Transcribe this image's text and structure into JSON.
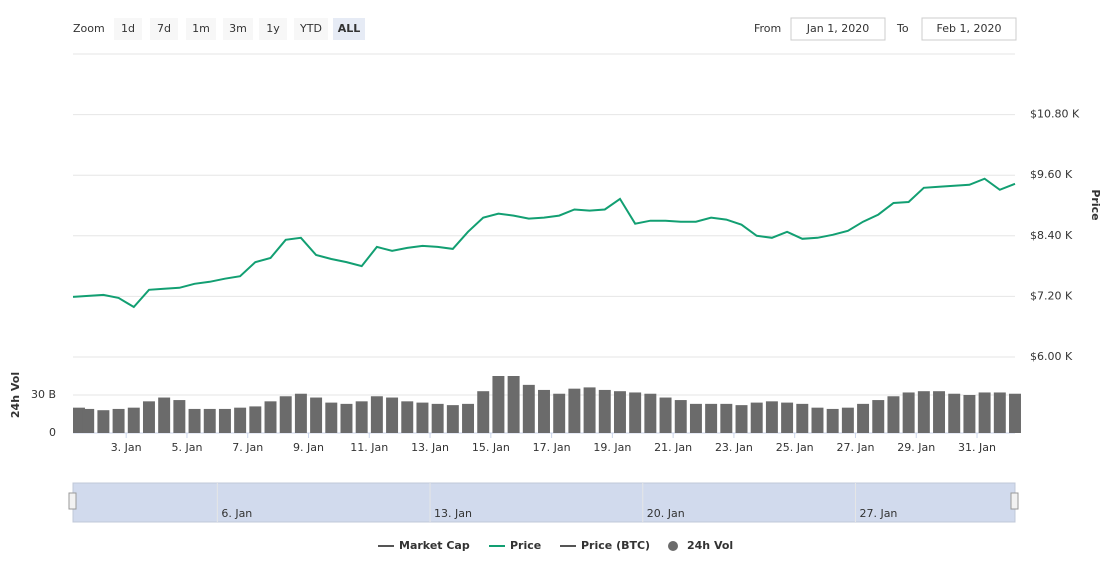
{
  "zoom": {
    "label": "Zoom",
    "buttons": [
      "1d",
      "7d",
      "1m",
      "3m",
      "1y",
      "YTD",
      "ALL"
    ],
    "selected_index": 6
  },
  "range": {
    "from_label": "From",
    "from": "Jan 1, 2020",
    "to_label": "To",
    "to": "Feb 1, 2020"
  },
  "chart_data": {
    "type": "line",
    "ylabel": "Price",
    "y2label": "24h Vol",
    "x": [
      "2020-01-01T06:00",
      "2020-01-01T18:00",
      "2020-01-02T06:00",
      "2020-01-02T18:00",
      "2020-01-03T06:00",
      "2020-01-03T18:00",
      "2020-01-04T06:00",
      "2020-01-04T18:00",
      "2020-01-05T06:00",
      "2020-01-05T18:00",
      "2020-01-06T06:00",
      "2020-01-06T18:00",
      "2020-01-07T06:00",
      "2020-01-07T18:00",
      "2020-01-08T06:00",
      "2020-01-08T18:00",
      "2020-01-09T06:00",
      "2020-01-09T18:00",
      "2020-01-10T06:00",
      "2020-01-10T18:00",
      "2020-01-11T06:00",
      "2020-01-11T18:00",
      "2020-01-12T06:00",
      "2020-01-12T18:00",
      "2020-01-13T06:00",
      "2020-01-13T18:00",
      "2020-01-14T06:00",
      "2020-01-14T18:00",
      "2020-01-15T06:00",
      "2020-01-15T18:00",
      "2020-01-16T06:00",
      "2020-01-16T18:00",
      "2020-01-17T06:00",
      "2020-01-17T18:00",
      "2020-01-18T06:00",
      "2020-01-18T18:00",
      "2020-01-19T06:00",
      "2020-01-19T18:00",
      "2020-01-20T06:00",
      "2020-01-20T18:00",
      "2020-01-21T06:00",
      "2020-01-21T18:00",
      "2020-01-22T06:00",
      "2020-01-22T18:00",
      "2020-01-23T06:00",
      "2020-01-23T18:00",
      "2020-01-24T06:00",
      "2020-01-24T18:00",
      "2020-01-25T06:00",
      "2020-01-25T18:00",
      "2020-01-26T06:00",
      "2020-01-26T18:00",
      "2020-01-27T06:00",
      "2020-01-27T18:00",
      "2020-01-28T06:00",
      "2020-01-28T18:00",
      "2020-01-29T06:00",
      "2020-01-29T18:00",
      "2020-01-30T06:00",
      "2020-01-30T18:00",
      "2020-01-31T06:00",
      "2020-01-31T18:00",
      "2020-02-01T06:00"
    ],
    "xlim": [
      "2020-01-01T06:00",
      "2020-02-01T06:00"
    ],
    "xticks": [
      {
        "value": "2020-01-03T00:00",
        "label": "3. Jan"
      },
      {
        "value": "2020-01-05T00:00",
        "label": "5. Jan"
      },
      {
        "value": "2020-01-07T00:00",
        "label": "7. Jan"
      },
      {
        "value": "2020-01-09T00:00",
        "label": "9. Jan"
      },
      {
        "value": "2020-01-11T00:00",
        "label": "11. Jan"
      },
      {
        "value": "2020-01-13T00:00",
        "label": "13. Jan"
      },
      {
        "value": "2020-01-15T00:00",
        "label": "15. Jan"
      },
      {
        "value": "2020-01-17T00:00",
        "label": "17. Jan"
      },
      {
        "value": "2020-01-19T00:00",
        "label": "19. Jan"
      },
      {
        "value": "2020-01-21T00:00",
        "label": "21. Jan"
      },
      {
        "value": "2020-01-23T00:00",
        "label": "23. Jan"
      },
      {
        "value": "2020-01-25T00:00",
        "label": "25. Jan"
      },
      {
        "value": "2020-01-27T00:00",
        "label": "27. Jan"
      },
      {
        "value": "2020-01-29T00:00",
        "label": "29. Jan"
      },
      {
        "value": "2020-01-31T00:00",
        "label": "31. Jan"
      }
    ],
    "navigator_xticks": [
      {
        "value": "2020-01-06T00:00",
        "label": "6. Jan"
      },
      {
        "value": "2020-01-13T00:00",
        "label": "13. Jan"
      },
      {
        "value": "2020-01-20T00:00",
        "label": "20. Jan"
      },
      {
        "value": "2020-01-27T00:00",
        "label": "27. Jan"
      }
    ],
    "ylim": [
      6000,
      12000
    ],
    "yticks": [
      {
        "value": 6000,
        "label": "$6.00 K"
      },
      {
        "value": 7200,
        "label": "$7.20 K"
      },
      {
        "value": 8400,
        "label": "$8.40 K"
      },
      {
        "value": 9600,
        "label": "$9.60 K"
      },
      {
        "value": 10800,
        "label": "$10.80 K"
      }
    ],
    "y2lim": [
      0,
      60
    ],
    "y2ticks": [
      0,
      {
        "value": 30,
        "label": "30 B"
      }
    ],
    "grid": true,
    "series": [
      {
        "name": "Market Cap",
        "type": "line",
        "color": "#555555",
        "visible": false
      },
      {
        "name": "Price",
        "type": "line",
        "color": "#129f72",
        "visible": true,
        "values": [
          7190,
          7210,
          7230,
          7170,
          6990,
          7330,
          7350,
          7370,
          7450,
          7490,
          7550,
          7600,
          7880,
          7960,
          8320,
          8360,
          8020,
          7940,
          7880,
          7800,
          8180,
          8100,
          8160,
          8200,
          8180,
          8140,
          8480,
          8760,
          8840,
          8800,
          8740,
          8760,
          8800,
          8920,
          8900,
          8920,
          9130,
          8640,
          8700,
          8700,
          8680,
          8680,
          8760,
          8720,
          8620,
          8400,
          8360,
          8480,
          8340,
          8360,
          8420,
          8500,
          8680,
          8820,
          9050,
          9070,
          9350,
          9370,
          9390,
          9410,
          9530,
          9310,
          9430
        ]
      },
      {
        "name": "Price (BTC)",
        "type": "line",
        "color": "#555555",
        "visible": false
      },
      {
        "name": "24h Vol",
        "type": "column",
        "axis": "y2",
        "color": "#6b6b6b",
        "visible": true,
        "values": [
          20,
          19,
          18,
          19,
          20,
          25,
          28,
          26,
          19,
          19,
          19,
          20,
          21,
          25,
          29,
          31,
          28,
          24,
          23,
          25,
          29,
          28,
          25,
          24,
          23,
          22,
          23,
          33,
          45,
          45,
          38,
          34,
          31,
          35,
          36,
          34,
          33,
          32,
          31,
          28,
          26,
          23,
          23,
          23,
          22,
          24,
          25,
          24,
          23,
          20,
          19,
          20,
          23,
          26,
          29,
          32,
          33,
          33,
          31,
          30,
          32,
          32,
          31
        ]
      }
    ]
  }
}
